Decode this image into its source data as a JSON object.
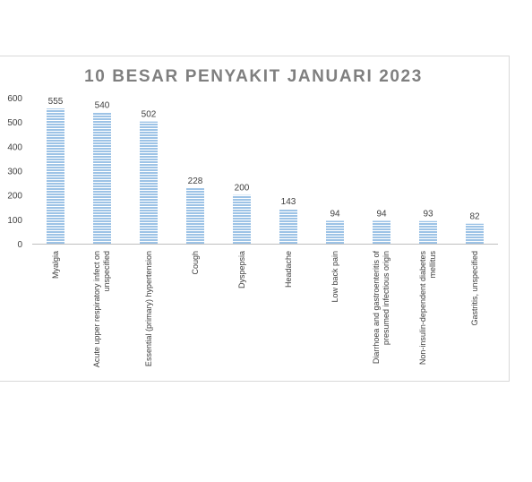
{
  "chart_data": {
    "type": "bar",
    "title": "10 BESAR PENYAKIT JANUARI 2023",
    "categories": [
      [
        "Myalgia"
      ],
      [
        "Acute upper respiratory infect on",
        "unspecified"
      ],
      [
        "Essential (primary) hypertension"
      ],
      [
        "Cough"
      ],
      [
        "Dyspepsia"
      ],
      [
        "Headache"
      ],
      [
        "Low back pain"
      ],
      [
        "Diarrhoea and gastroenteritis of",
        "presumed infectious origin"
      ],
      [
        "Non-insulin-dependent diabetes",
        "mellitus"
      ],
      [
        "Gastritis, unspecified"
      ]
    ],
    "values": [
      555,
      540,
      502,
      228,
      200,
      143,
      94,
      94,
      93,
      82
    ],
    "yticks": [
      0,
      100,
      200,
      300,
      400,
      500,
      600
    ],
    "ylim": [
      0,
      600
    ],
    "xlabel": "",
    "ylabel": "",
    "bar_color": "#9dc3e6",
    "stripe_color": "#ffffff",
    "grid": false,
    "legend": "none"
  }
}
